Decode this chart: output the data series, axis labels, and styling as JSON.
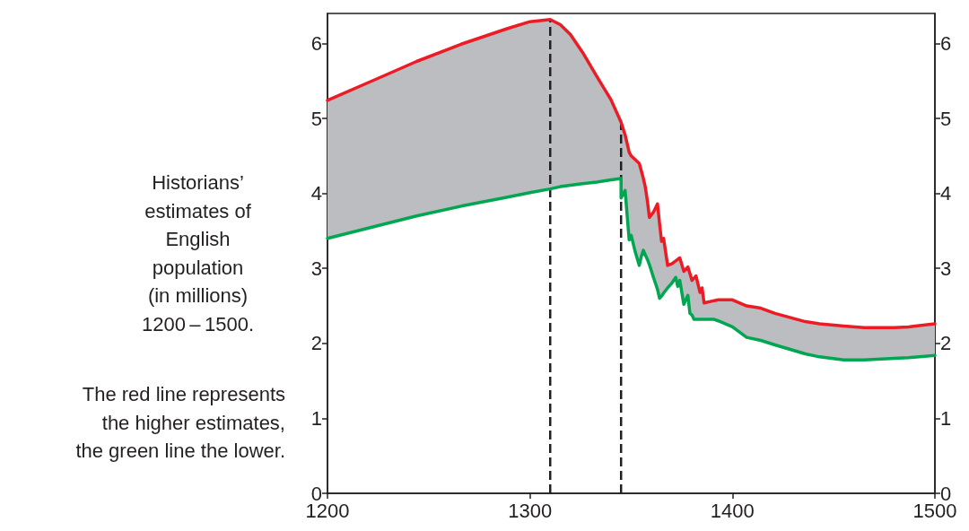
{
  "chart_data": {
    "type": "line",
    "x": [
      1200,
      1222,
      1244,
      1266,
      1289,
      1300,
      1310,
      1315,
      1320,
      1326,
      1333,
      1340,
      1345,
      1345,
      1347,
      1349,
      1350,
      1352,
      1354,
      1355,
      1356,
      1357,
      1358,
      1359,
      1361,
      1363,
      1364,
      1365,
      1366,
      1368,
      1370,
      1372,
      1373,
      1374,
      1376,
      1378,
      1379,
      1380,
      1381,
      1382,
      1384,
      1385,
      1386,
      1391,
      1393,
      1400,
      1407,
      1414,
      1421,
      1436,
      1443,
      1455,
      1465,
      1480,
      1487,
      1500
    ],
    "series": [
      {
        "color": "#00a651",
        "values": [
          3.4,
          3.55,
          3.7,
          3.83,
          3.95,
          4.01,
          4.06,
          4.09,
          4.11,
          4.13,
          4.15,
          4.18,
          4.2,
          3.94,
          4.04,
          3.38,
          3.44,
          3.22,
          3.04,
          3.16,
          3.24,
          3.18,
          3.12,
          3.05,
          2.88,
          2.72,
          2.6,
          2.63,
          2.67,
          2.74,
          2.8,
          2.88,
          2.76,
          2.84,
          2.52,
          2.64,
          2.4,
          2.38,
          2.32,
          2.32,
          2.32,
          2.32,
          2.32,
          2.32,
          2.3,
          2.22,
          2.08,
          2.04,
          1.98,
          1.86,
          1.82,
          1.78,
          1.78,
          1.8,
          1.81,
          1.84
        ]
      },
      {
        "color": "#ed1c24",
        "values": [
          5.24,
          5.5,
          5.76,
          5.99,
          6.2,
          6.29,
          6.32,
          6.25,
          6.12,
          5.88,
          5.56,
          5.25,
          4.95,
          4.95,
          4.78,
          4.55,
          4.5,
          4.45,
          4.4,
          4.3,
          4.2,
          4.08,
          3.9,
          3.68,
          3.75,
          3.86,
          3.6,
          3.36,
          3.4,
          3.04,
          3.06,
          3.1,
          3.12,
          3.14,
          2.96,
          3.02,
          2.93,
          2.84,
          2.87,
          2.9,
          2.68,
          2.74,
          2.54,
          2.57,
          2.58,
          2.58,
          2.5,
          2.47,
          2.4,
          2.29,
          2.26,
          2.23,
          2.21,
          2.21,
          2.22,
          2.26
        ],
        "lower": [
          3.4,
          3.55,
          3.7,
          3.83,
          3.95,
          4.01,
          4.06,
          4.09,
          4.11,
          4.13,
          4.15,
          4.18,
          4.2,
          3.94,
          4.04,
          3.38,
          3.44,
          3.22,
          3.04,
          3.16,
          3.24,
          3.18,
          3.12,
          3.05,
          2.88,
          2.72,
          2.6,
          2.63,
          2.67,
          2.74,
          2.8,
          2.88,
          2.76,
          2.84,
          2.52,
          2.64,
          2.4,
          2.38,
          2.32,
          2.32,
          2.32,
          2.32,
          2.32,
          2.32,
          2.3,
          2.22,
          2.08,
          2.04,
          1.98,
          1.86,
          1.82,
          1.78,
          1.78,
          1.8,
          1.81,
          1.84
        ],
        "upper": [
          5.24,
          5.5,
          5.76,
          5.99,
          6.2,
          6.29,
          6.32,
          6.25,
          6.12,
          5.88,
          5.56,
          5.25,
          4.95,
          4.95,
          4.78,
          4.55,
          4.5,
          4.45,
          4.4,
          4.3,
          4.2,
          4.08,
          3.9,
          3.68,
          3.75,
          3.86,
          3.6,
          3.36,
          3.4,
          3.04,
          3.06,
          3.1,
          3.12,
          3.14,
          2.96,
          3.02,
          2.93,
          2.84,
          2.87,
          2.9,
          2.68,
          2.74,
          2.54,
          2.57,
          2.58,
          2.58,
          2.5,
          2.47,
          2.4,
          2.29,
          2.26,
          2.23,
          2.21,
          2.21,
          2.22,
          2.26
        ]
      }
    ],
    "xlim": [
      1200,
      1500
    ],
    "xticks": [
      1200,
      1300,
      1400,
      1500
    ],
    "ylim": [
      0,
      6.4
    ],
    "yticks": [
      0,
      1,
      2,
      3,
      4,
      5,
      6
    ],
    "y2lim": [
      0,
      6.4
    ],
    "y2ticks": [
      0,
      1,
      2,
      3,
      4,
      5,
      6
    ],
    "ref_lines": [
      {
        "axis": "x",
        "value": 1310,
        "color": "#231f20",
        "line_style": "dashed"
      },
      {
        "axis": "x",
        "value": 1345,
        "color": "#231f20",
        "line_style": "dashed"
      }
    ],
    "annotations": [
      "Historians’\nestimates of\nEnglish\npopulation\n(in millions)\n1200 – 1500.",
      "The red line represents\nthe higher estimates,\nthe green line the lower."
    ],
    "grid": false,
    "marker": "none",
    "line_style": "solid"
  }
}
